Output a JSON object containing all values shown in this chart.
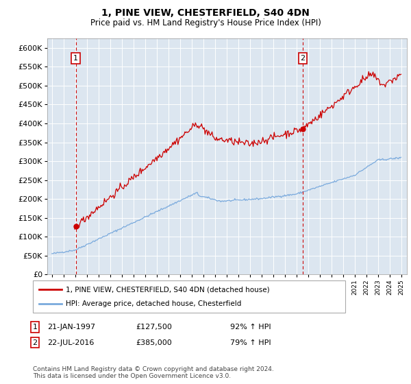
{
  "title": "1, PINE VIEW, CHESTERFIELD, S40 4DN",
  "subtitle": "Price paid vs. HM Land Registry's House Price Index (HPI)",
  "legend_line1": "1, PINE VIEW, CHESTERFIELD, S40 4DN (detached house)",
  "legend_line2": "HPI: Average price, detached house, Chesterfield",
  "footnote": "Contains HM Land Registry data © Crown copyright and database right 2024.\nThis data is licensed under the Open Government Licence v3.0.",
  "table": [
    {
      "id": 1,
      "date": "21-JAN-1997",
      "price": "£127,500",
      "hpi": "92% ↑ HPI"
    },
    {
      "id": 2,
      "date": "22-JUL-2016",
      "price": "£385,000",
      "hpi": "79% ↑ HPI"
    }
  ],
  "marker1_x": 1997.05,
  "marker1_y": 127500,
  "marker2_x": 2016.55,
  "marker2_y": 385000,
  "hpi_line_color": "#7aaadd",
  "price_line_color": "#cc0000",
  "vline_color": "#cc0000",
  "bg_color": "#dce6f0",
  "ylim": [
    0,
    625000
  ],
  "xlim_left": 1994.6,
  "xlim_right": 2025.5
}
